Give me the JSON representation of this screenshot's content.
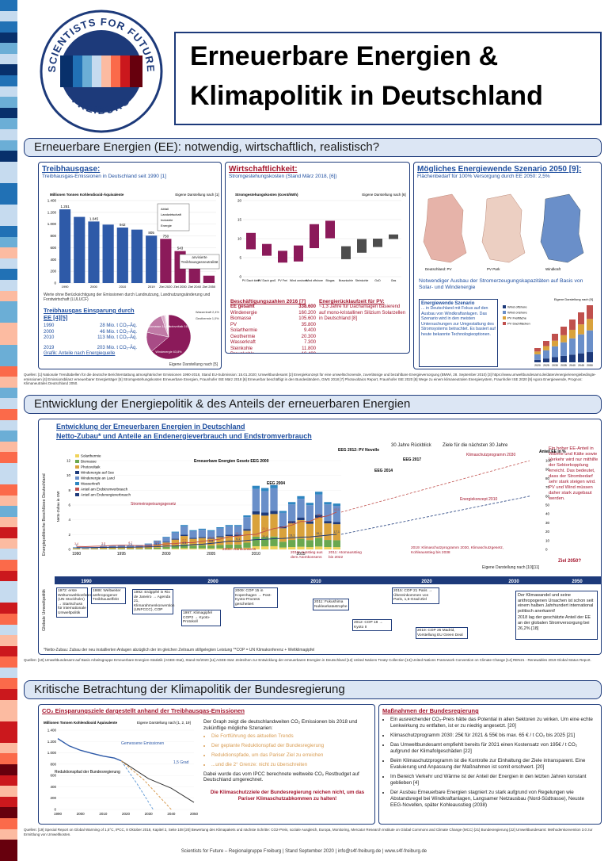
{
  "header": {
    "logo_text_top": "SCIENTISTS FOR FUTURE",
    "logo_text_bottom": "FREIBURG",
    "title_line1": "Erneuerbare Energien &",
    "title_line2": "Klimapolitik in Deutschland"
  },
  "colors": {
    "primary": "#1d3a7a",
    "accent_red": "#a3132b",
    "ghg_bar": "#2e5aa8",
    "target_bar": "#8b1a5a",
    "banner_bg": "#dce6f4"
  },
  "section1": {
    "heading": "Erneuerbare Energien (EE): notwendig, wirtschaftlich, realistisch?",
    "ghg": {
      "title": "Treibhausgase:",
      "subtitle": "Treibhausgas-Emissionen in Deutschland seit 1990 [1]",
      "chart_title": "Millionen Tonnen Kohlendioxid-Äquivalente",
      "source": "Eigene Darstellung nach [1]",
      "legend_lines": [
        "Abfall",
        "Landwirtschaft",
        "Industrie",
        "Energie"
      ],
      "target_label": "anvisierte Treibhausgasneutralität",
      "note": "Werte ohne Berücksichtigung der Emissionen durch Landnutzung, Landnutzungsänderung und Forstwirtschaft (LULUCF)",
      "reduction_title": "Treibhausgas Einsparung durch EE [4][5]",
      "reduction_rows": [
        {
          "year": "1990",
          "value": "28 Mio. t CO₂-Äq."
        },
        {
          "year": "2000",
          "value": "46 Mio. t CO₂-Äq."
        },
        {
          "year": "2010",
          "value": "113 Mio. t CO₂-Äq."
        },
        {
          "year": "2019",
          "value": "203 Mio. t CO₂-Äq."
        }
      ],
      "pie_caption": "Grafik: Anteile nach Energiequelle",
      "pie_source": "Eigene Darstellung nach [5]",
      "pie_labels": [
        "Windenergie 63,8%",
        "Biomasse 14,6%",
        "Photovoltaik 16,2%",
        "Wasserkraft 2,4%",
        "Geothermie 1,0%"
      ]
    },
    "econ": {
      "title": "Wirtschaftlichkeit:",
      "subtitle": "Stromgestehungskosten (Stand März 2018, [6])",
      "chart_title": "Stromgestehungskosten (€cent/kWh)",
      "source": "Eigene Darstellung nach [6]",
      "jobs_title": "Beschäftigungszahlen 2016 [7]",
      "jobs_rows": [
        {
          "name": "EE gesamt",
          "value": "338.600"
        },
        {
          "name": "Windenergie",
          "value": "160.200"
        },
        {
          "name": "Biomasse",
          "value": "105.600"
        },
        {
          "name": "PV",
          "value": "35.800"
        },
        {
          "name": "Solarthermie",
          "value": "9.400"
        },
        {
          "name": "Geothermie",
          "value": "20.300"
        },
        {
          "name": "Wasserkraft",
          "value": "7.300"
        },
        {
          "name": "Steinkohle",
          "value": "11.800"
        },
        {
          "name": "Braunkohle",
          "value": "18.400"
        }
      ],
      "payback_title": "Energierücklaufzeit für PV:",
      "payback_text": "~1,3 Jahre für Dachanlagen basierend auf mono-kristallinen Silizium Solarzellen in Deutschland [8]"
    },
    "scenario": {
      "title": "Mögliches Energiewende Szenario 2050 [9]:",
      "subtitle": "Flächenbedarf für 100% Versorgung durch EE 2050: 2,5%",
      "map_labels": [
        "Deutschland: PV",
        "PV Park",
        "Windkraft"
      ],
      "caption": "Notwendiger Ausbau der Stromerzeugungskapazitäten auf Basis von Solar- und Windenergie",
      "chart_source": "Eigene Darstellung nach [9]",
      "text_title": "Energiewende Szenario",
      "text_body": "... in Deutschland mit Fokus auf den Ausbau von Windkraftanlagen. Das Szenario wird in den meisten Untersuchungen zur Umgestaltung des Stromsystems betrachtet. Es basiert auf heute bekannte Technologieoptionen.",
      "legend": [
        "Wind offshore",
        "Wind onshore",
        "PV Freifläche",
        "PV Dachflächen"
      ]
    },
    "refs": "Quellen: [1] Nationale Trendtabellen für die deutsche Berichterstattung atmosphärischer Emissionen 1990-2018, Stand EU-Submission: 15.01.2020; Umweltbundesamt [2] Energiekonzept für eine umweltschonende, zuverlässige und bezahlbare Energieversorgung (BMWi, 28. September 2010) [3] https://www.umweltbundesamt.de/daten/energie/energiebedingte-emissionen [4] Emissionsbilanz erneuerbarer Energieträger [5] Stromgestehungskosten Erneuerbare Energien, Fraunhofer ISE März 2018 [6] Erneuerbar beschäftigt in den Bundesländern, GWS 2018 [7] Photovoltaics Report, Fraunhofer ISE 2020 [8] Wege zu einem klimaneutralen Energiesystem, Fraunhofer ISE 2020 [9] Agora Energiewende, Prognos: Klimaneutrales Deutschland 2050."
  },
  "section2": {
    "heading": "Entwicklung der Energiepolitik & des Anteils der erneuerbaren Energien",
    "chart_title_1": "Entwicklung der Erneuerbaren Energien in Deutschland",
    "chart_title_2": "Netto-Zubau* und Anteile an Endenergieverbrauch und Endstromverbrauch",
    "retro_label": "30 Jahre Rückblick",
    "outlook_label": "Ziele für die nächsten 30 Jahre",
    "left_axis": "Netto-Zubau in GW",
    "right_axis": "Anteil EE in %",
    "side_label_top": "Energiepolitische Beschlüsse Deutschland",
    "side_label_bottom": "Globale Umweltpolitik",
    "legend": [
      "Solarthermie",
      "Biomasse",
      "Photovoltaik",
      "Windenergie auf See",
      "Windenergie an Land",
      "Wasserkraft",
      "Anteil am Endstromverbrauch",
      "Anteil am Endenergieverbrauch"
    ],
    "annotations": [
      "Erneuerbare Energien Gesetz EEG 2000",
      "EEG 2004",
      "EEG 2012: PV Novelle",
      "EEG 2014",
      "EEG 2017",
      "Klimaschutzprogramm 2030",
      "Energiekonzept 2010",
      "Stromeinspeisungsgesetz"
    ],
    "side_text": "Ein hoher EE-Anteil in Wärme und Kälte sowie Verkehr wird nur mithilfe der Sektorkopplung erreicht. Das bedeutet, dass der Strombedarf sehr stark steigen wird. PV und Wind müssen daher stark zugebaut werden.",
    "target_2050": "Ziel 2050?",
    "chart_source": "Eigene Darstellung nach [10][11]",
    "timeline_years": [
      "1990",
      "2000",
      "2010",
      "2020",
      "2030",
      "2050"
    ],
    "events_de": [
      "2000: Atomkonsens",
      "2010: Ausstieg aus dem Atomkonsens",
      "2011: Atomausstieg bis 2022",
      "2019: Klimaschutzprogramm 2030, Klimaschutzgesetz, Kohleausstieg bis 2038"
    ],
    "events_global": [
      "1972: erste Weltumweltkonferenz (UN Stockholm) → Startschuss für internationale Umweltpolitik",
      "1988: Weltweiter anthropogener Treibhauseffekt",
      "1992: Erdgipfel in Rio de Janeiro → Agenda 21, Klimarahmenkonvention (UNFCCC), COP",
      "1997: Klimagipfel COP3 → Kyoto-Protokoll",
      "2009: COP 15 in Kopenhagen → Post-Kyoto-Prozess gescheitert",
      "2011: Fukushima Nuklearkatastrophe",
      "2012: COP 18 → Kyoto II",
      "2015: COP 21 Paris → Übereinkommen von Paris, 1,5-Grad-Ziel",
      "2019: COP 25 Madrid, Vorstellung EU Green Deal"
    ],
    "climate_note": "Der Klimawandel und seine anthropogenen Ursachen ist schon seit einem halben Jahrhundert international politisch anerkannt!",
    "climate_note_2": "2018 lag der geschätzte Anteil der EE an der globalen Stromversorgung bei 26,2% [18]",
    "footnote": "*Netto-Zubau: Zubau der neu installierten Anlagen abzüglich der im gleichen Zeitraum stillgelegten Leistung  **COP = UN Klimakonferenz  + Weltklimagipfel",
    "refs": "Quellen: [10] Umweltbundesamt auf Basis Arbeitsgruppe Erneuerbare Energien-Statistik (AGEE-Stat), Stand 02/2020 [11] AGEE-Stat: Zeitreihen zur Entwicklung der erneuerbaren Energien in Deutschland [12] United Nations Treaty Collection [13] United Nations Framework Convention on Climate Change [14] REN21 - Renewables 2019 Global Status Report."
  },
  "section3": {
    "heading": "Kritische Betrachtung der Klimapolitik der Bundesregierung",
    "left_title": "CO₂ Einsparungsziele dargestellt anhand der Treibhausgas-Emissionen",
    "chart_title": "Millionen Tonnen Kohlendioxid Äquivalente",
    "chart_source": "Eigene Darstellung nach [1, 2, 19]",
    "curve_label_1": "Gemessene Emissionen",
    "curve_label_2": "Reduktionspfad der Bundesregierung",
    "curve_label_3": "1,5 Grad",
    "text_intro": "Der Graph zeigt die deutschlandweiten CO₂ Emissionen bis 2018 und zukünftige mögliche Szenarien:",
    "text_items": [
      "Die Fortführung des aktuellen Trends",
      "Der geplante Reduktionspfad der Bundesregierung",
      "Reduktionspfade, um das Pariser Ziel zu erreichen",
      "...und die 2° Grenze: nicht zu überschreiten"
    ],
    "text_after": "Dabei wurde das vom IPCC berechnete weltweite CO₂ Restbudget auf Deutschland umgerechnet.",
    "conclusion": "Die Klimaschutzziele der Bundesregierung reichen nicht, um das Pariser Klimaschutzabkommen zu halten!",
    "right_title": "Maßnahmen der Bundesregierung",
    "measures": [
      "Ein ausreichender CO₂-Preis hätte das Potential in allen Sektoren zu wirken. Um eine echte Lenkwirkung zu entfalten, ist er zu niedrig angesetzt. [20]",
      "Klimaschutzprogramm 2030: 25€ für 2021 & 55€ bis max. 65 € / t CO₂ bis 2025 [21]",
      "Das Umweltbundesamt empfiehlt bereits für 2021 einen Kostensatz von 195€ / t CO₂ aufgrund der Klimafolgeschäden [22]",
      "Beim Klimaschutzprogramm ist die Kontrolle zur Einhaltung der Ziele intransparent. Eine Evaluierung und Anpassung der Maßnahmen ist somit erschwert. [20]",
      "Im Bereich Verkehr und Wärme ist der Anteil der Energien in den letzten Jahren konstant geblieben [4]",
      "Der Ausbau Erneuerbare Energien stagniert zu stark aufgrund von Regelungen wie Abstandsregel bei Windkraftanlagen, Langsamer Netzausbau (Nord-Südtrasse), Neuste EEG-Novellen, später Kohleausstieg (2038)"
    ],
    "refs": "Quellen: [19] Special Report on Global Warming of 1,5°C, IPCC, 8 Oktober 2018, Kapitel 2, Seite 108 [20] Bewertung des Klimapakets und nächste Schritte: CO2-Preis, soziale Ausgleich, Europa, Monitoring, Mercator Research Institute on Global Commons and Climate Change (MCC) [21] Bundesregierung [22] Umweltbundesamt: Methodenkonvention 3.0 zur Ermittlung von Umweltkosten."
  },
  "footer": "Scientists for Future – Regionalgruppe Freiburg | Stand September 2020 | info@s4f-freiburg.de | www.s4f-freiburg.de",
  "chart_data": [
    {
      "type": "bar",
      "title": "Millionen Tonnen Kohlendioxid-Äquivalente",
      "categories": [
        "1990",
        "1995",
        "2000",
        "2005",
        "2010",
        "2015",
        "2019",
        "Ziel 2020",
        "Ziel 2030",
        "Ziel 2040",
        "Ziel 2050"
      ],
      "values": [
        1251,
        1123,
        1045,
        992,
        942,
        907,
        805,
        750,
        543,
        375,
        125
      ],
      "labels": [
        "1.251",
        "",
        "1.045",
        "",
        "942",
        "",
        "805",
        "750",
        "543",
        "375",
        ""
      ],
      "ylim": [
        0,
        1400
      ]
    },
    {
      "type": "bar",
      "title": "Stromgestehungskosten (€cent/kWh)",
      "categories": [
        "PV Dach klein",
        "PV Dach groß",
        "PV Frei",
        "Wind onshore",
        "Wind offshore",
        "Biogas",
        "Braunkohle",
        "Steinkohle",
        "GuD",
        "Gas"
      ],
      "low": [
        7.2,
        5.5,
        3.7,
        4.0,
        7.5,
        10.1,
        4.6,
        6.3,
        7.8,
        9.9
      ],
      "high": [
        11.5,
        8.6,
        6.8,
        8.2,
        13.8,
        14.7,
        8.0,
        9.9,
        10.0,
        11.1
      ],
      "ylim": [
        0,
        20
      ]
    },
    {
      "type": "bar",
      "title": "Netto-Zubau in GW",
      "categories": [
        "1990",
        "1991",
        "1992",
        "1993",
        "1994",
        "1995",
        "1996",
        "1997",
        "1998",
        "1999",
        "2000",
        "2001",
        "2002",
        "2003",
        "2004",
        "2005",
        "2006",
        "2007",
        "2008",
        "2009",
        "2010",
        "2011",
        "2012",
        "2013",
        "2014",
        "2015",
        "2016",
        "2017",
        "2018",
        "2019"
      ],
      "values": [
        0.3,
        0.2,
        0.3,
        0.4,
        0.5,
        0.6,
        0.5,
        0.6,
        0.8,
        1.2,
        1.7,
        2.4,
        3.3,
        2.6,
        2.8,
        2.6,
        3.0,
        3.3,
        3.3,
        4.6,
        8.6,
        8.3,
        8.7,
        5.2,
        6.4,
        7.2,
        6.3,
        7.8,
        6.4,
        6.2
      ],
      "share_electricity": [
        3.4,
        3.1,
        3.6,
        3.8,
        4.5,
        4.7,
        4.7,
        4.1,
        4.5,
        5.2,
        6.2,
        6.6,
        7.7,
        7.6,
        9.3,
        10.2,
        11.6,
        14.3,
        15.1,
        16.4,
        17.0,
        20.4,
        23.5,
        25.1,
        27.4,
        31.5,
        31.6,
        36.0,
        37.8,
        42.1
      ],
      "share_final_energy": [
        2.0,
        2.0,
        2.1,
        2.2,
        2.3,
        2.4,
        2.5,
        2.7,
        2.9,
        3.1,
        3.8,
        3.9,
        4.3,
        5.5,
        5.8,
        6.8,
        7.8,
        9.4,
        9.1,
        10.1,
        11.1,
        11.4,
        12.1,
        12.4,
        13.1,
        13.8,
        14.1,
        15.1,
        16.1,
        17.1
      ],
      "ylim": [
        0,
        12
      ],
      "y2lim": [
        0,
        100
      ]
    },
    {
      "type": "line",
      "title": "Millionen Tonnen Kohlendioxid Äquivalente",
      "x": [
        1990,
        1995,
        2000,
        2005,
        2010,
        2015,
        2018
      ],
      "y": [
        1251,
        1123,
        1045,
        992,
        942,
        907,
        858
      ],
      "ylim": [
        0,
        1400
      ],
      "xlim": [
        1990,
        2050
      ]
    }
  ]
}
